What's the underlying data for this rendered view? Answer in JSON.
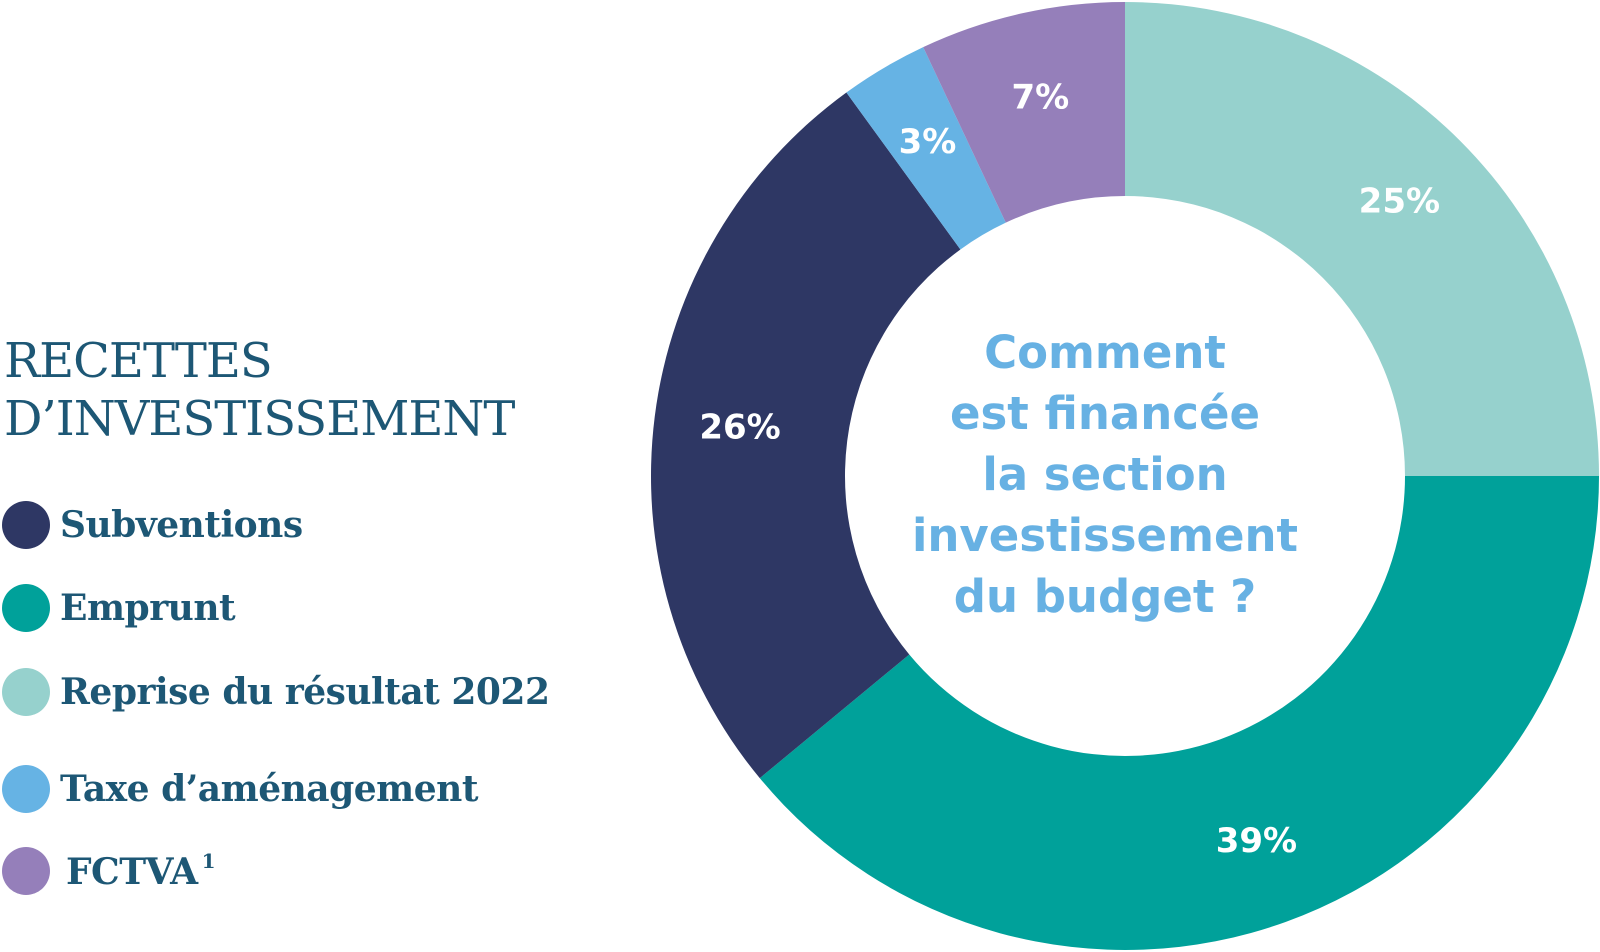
{
  "legend": {
    "title_lines": [
      "RECETTES",
      "D’INVESTISSEMENT"
    ],
    "items": [
      {
        "label": "Subventions",
        "color": "#2e3764"
      },
      {
        "label": "Emprunt",
        "color": "#00a19a"
      },
      {
        "label": "Reprise du résultat 2022",
        "color": "#96d1cd"
      },
      {
        "label": "Taxe d’aménagement",
        "color": "#66b3e4"
      },
      {
        "label": "FCTVA",
        "color": "#957fba",
        "footnote": "1"
      }
    ]
  },
  "center_question": [
    "Comment",
    "est financée",
    "la section",
    "investissement",
    "du budget ?"
  ],
  "chart_data": {
    "type": "pie",
    "donut": true,
    "start": "12 o'clock",
    "direction": "clockwise",
    "slice_order": [
      "Reprise du résultat 2022",
      "Emprunt",
      "Subventions",
      "Taxe d’aménagement",
      "FCTVA"
    ],
    "slices": [
      {
        "category": "Reprise du résultat 2022",
        "value": 25,
        "label": "25%",
        "color": "#96d1cd"
      },
      {
        "category": "Emprunt",
        "value": 39,
        "label": "39%",
        "color": "#00a19a"
      },
      {
        "category": "Subventions",
        "value": 26,
        "label": "26%",
        "color": "#2e3764"
      },
      {
        "category": "Taxe d’aménagement",
        "value": 3,
        "label": "3%",
        "color": "#66b3e4"
      },
      {
        "category": "FCTVA",
        "value": 7,
        "label": "7%",
        "color": "#957fba"
      }
    ],
    "legend_position": "left"
  }
}
